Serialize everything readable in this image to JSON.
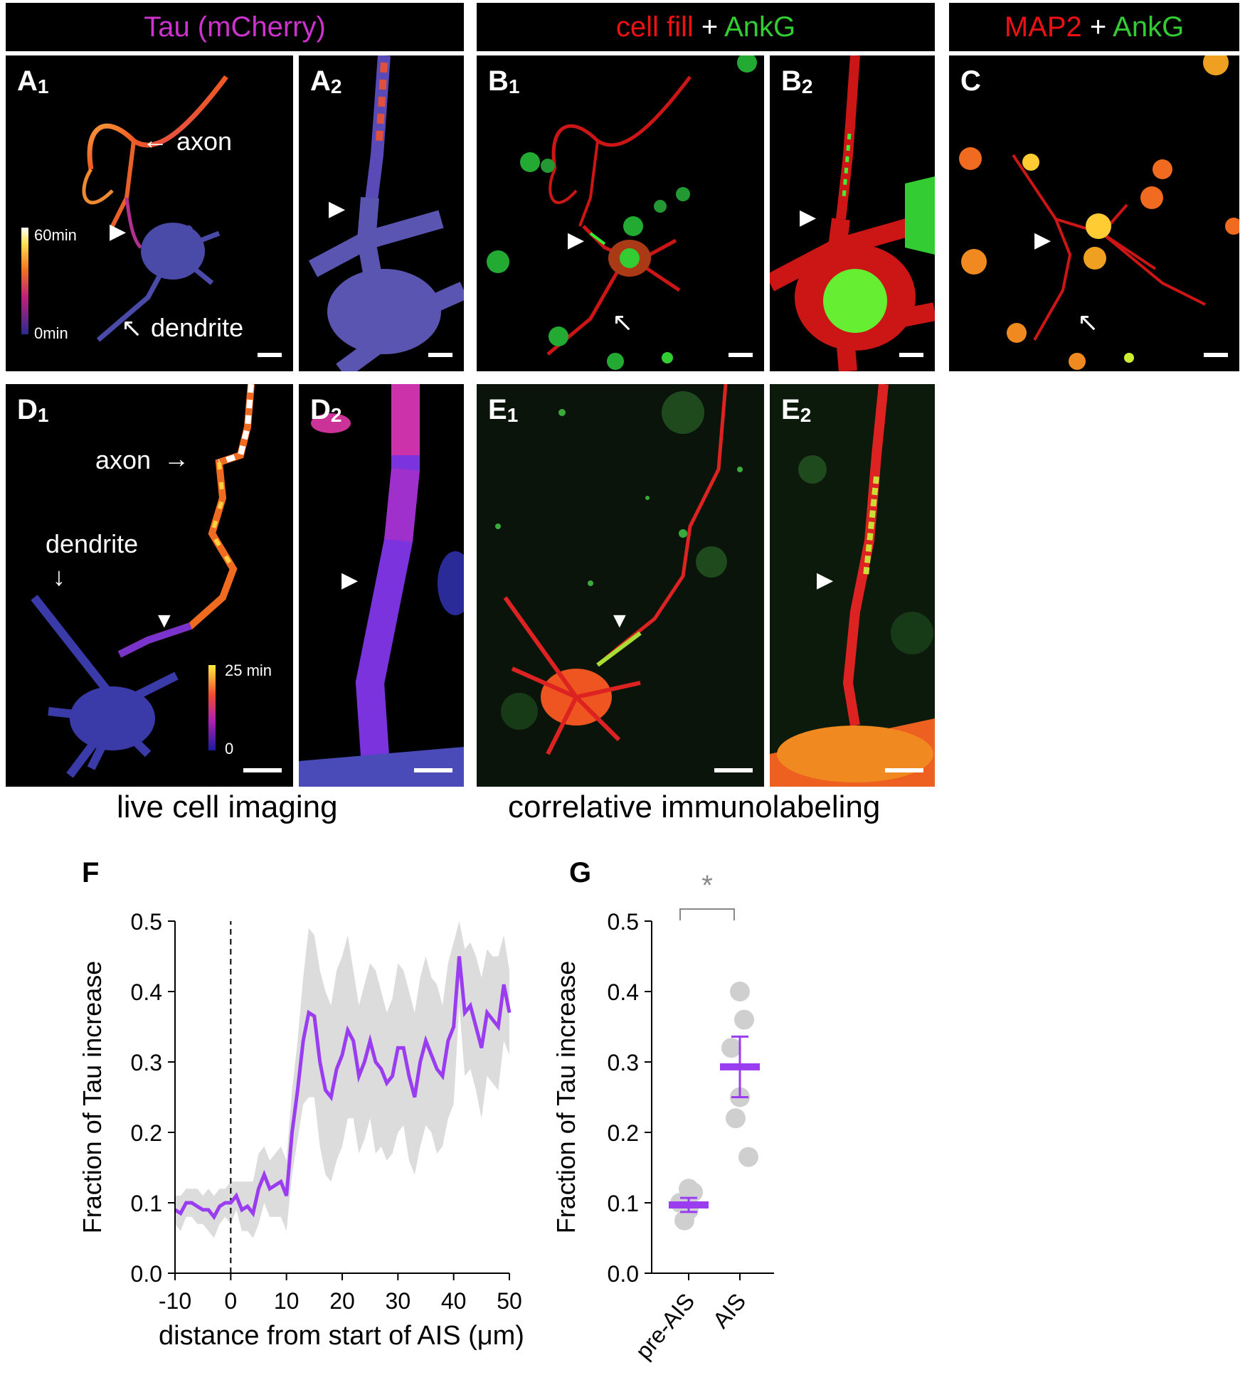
{
  "headers": {
    "tau": "Tau (mCherry)",
    "cellfill_a": "cell fill",
    "plus": "+",
    "ankg": "AnkG",
    "map2": "MAP2"
  },
  "panels": {
    "A1": {
      "letter": "A",
      "sub": "1"
    },
    "A2": {
      "letter": "A",
      "sub": "2"
    },
    "B1": {
      "letter": "B",
      "sub": "1"
    },
    "B2": {
      "letter": "B",
      "sub": "2"
    },
    "C": {
      "letter": "C",
      "sub": ""
    },
    "D1": {
      "letter": "D",
      "sub": "1"
    },
    "D2": {
      "letter": "D",
      "sub": "2"
    },
    "E1": {
      "letter": "E",
      "sub": "1"
    },
    "E2": {
      "letter": "E",
      "sub": "2"
    }
  },
  "annotations": {
    "axon": "axon",
    "dendrite": "dendrite",
    "cbar_a_top": "60min",
    "cbar_a_bottom": "0min",
    "cbar_d_top": "25 min",
    "cbar_d_bottom": "0"
  },
  "captions": {
    "live": "live cell imaging",
    "correlative": "correlative immunolabeling"
  },
  "colors": {
    "magenta": "#cc33cc",
    "red": "#ee1111",
    "green": "#33cc33",
    "purple": "#9a3df0",
    "band_gray": "#dcdcdc",
    "dot_gray": "#cfcfcf"
  },
  "chart_data": [
    {
      "panel": "F",
      "type": "line",
      "xlabel": "distance from start of AIS (μm)",
      "ylabel": "Fraction of Tau increase",
      "xlim": [
        -10,
        50
      ],
      "ylim": [
        0.0,
        0.5
      ],
      "xticks": [
        "-10",
        "0",
        "10",
        "20",
        "30",
        "40",
        "50"
      ],
      "yticks": [
        "0.0",
        "0.1",
        "0.2",
        "0.3",
        "0.4",
        "0.5"
      ],
      "x": [
        -10,
        -9,
        -8,
        -7,
        -6,
        -5,
        -4,
        -3,
        -2,
        -1,
        0,
        1,
        2,
        3,
        4,
        5,
        6,
        7,
        8,
        9,
        10,
        11,
        12,
        13,
        14,
        15,
        16,
        17,
        18,
        19,
        20,
        21,
        22,
        23,
        24,
        25,
        26,
        27,
        28,
        29,
        30,
        31,
        32,
        33,
        34,
        35,
        36,
        37,
        38,
        39,
        40,
        41,
        42,
        43,
        44,
        45,
        46,
        47,
        48,
        49,
        50
      ],
      "series": [
        {
          "type": "mean",
          "values": [
            0.09,
            0.085,
            0.1,
            0.1,
            0.095,
            0.09,
            0.09,
            0.08,
            0.095,
            0.1,
            0.1,
            0.11,
            0.09,
            0.095,
            0.085,
            0.12,
            0.14,
            0.12,
            0.125,
            0.13,
            0.11,
            0.2,
            0.26,
            0.33,
            0.37,
            0.365,
            0.3,
            0.26,
            0.25,
            0.29,
            0.31,
            0.345,
            0.33,
            0.28,
            0.3,
            0.33,
            0.3,
            0.29,
            0.27,
            0.28,
            0.32,
            0.32,
            0.28,
            0.25,
            0.3,
            0.33,
            0.31,
            0.29,
            0.28,
            0.33,
            0.35,
            0.45,
            0.37,
            0.38,
            0.35,
            0.32,
            0.37,
            0.36,
            0.35,
            0.41,
            0.37
          ]
        },
        {
          "type": "upper",
          "values": [
            0.11,
            0.11,
            0.12,
            0.12,
            0.12,
            0.11,
            0.12,
            0.11,
            0.12,
            0.12,
            0.13,
            0.13,
            0.13,
            0.13,
            0.13,
            0.17,
            0.18,
            0.16,
            0.17,
            0.18,
            0.16,
            0.26,
            0.33,
            0.42,
            0.49,
            0.48,
            0.43,
            0.4,
            0.38,
            0.43,
            0.45,
            0.48,
            0.43,
            0.38,
            0.41,
            0.44,
            0.43,
            0.4,
            0.37,
            0.39,
            0.44,
            0.43,
            0.4,
            0.37,
            0.42,
            0.45,
            0.42,
            0.41,
            0.38,
            0.44,
            0.47,
            0.5,
            0.46,
            0.47,
            0.45,
            0.42,
            0.46,
            0.45,
            0.45,
            0.48,
            0.43
          ]
        },
        {
          "type": "lower",
          "values": [
            0.07,
            0.06,
            0.08,
            0.08,
            0.07,
            0.07,
            0.06,
            0.05,
            0.07,
            0.08,
            0.07,
            0.09,
            0.06,
            0.06,
            0.05,
            0.07,
            0.1,
            0.08,
            0.08,
            0.08,
            0.06,
            0.14,
            0.19,
            0.24,
            0.25,
            0.25,
            0.18,
            0.14,
            0.13,
            0.16,
            0.18,
            0.22,
            0.22,
            0.17,
            0.19,
            0.22,
            0.17,
            0.18,
            0.16,
            0.17,
            0.2,
            0.21,
            0.16,
            0.14,
            0.18,
            0.21,
            0.2,
            0.17,
            0.18,
            0.22,
            0.24,
            0.38,
            0.28,
            0.29,
            0.26,
            0.22,
            0.28,
            0.27,
            0.26,
            0.33,
            0.31
          ]
        }
      ]
    },
    {
      "panel": "G",
      "type": "scatter",
      "ylabel": "Fraction of Tau increase",
      "ylim": [
        0.0,
        0.5
      ],
      "yticks": [
        "0.0",
        "0.1",
        "0.2",
        "0.3",
        "0.4",
        "0.5"
      ],
      "categories": [
        "pre-AIS",
        "AIS"
      ],
      "points": [
        [
          0.12,
          0.115,
          0.1,
          0.09,
          0.075
        ],
        [
          0.4,
          0.36,
          0.32,
          0.25,
          0.22,
          0.165
        ]
      ],
      "mean": [
        0.097,
        0.293
      ],
      "sem": [
        0.01,
        0.043
      ],
      "significance": "*"
    }
  ],
  "figure_labels": {
    "F": "F",
    "G": "G"
  }
}
